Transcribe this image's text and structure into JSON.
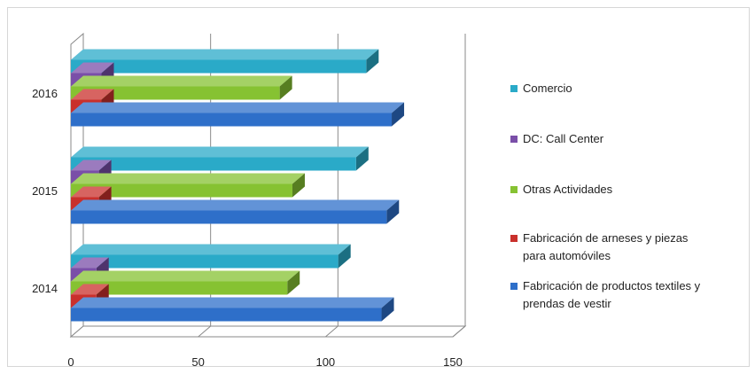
{
  "chart_data": {
    "type": "bar",
    "orientation": "horizontal",
    "style": "3d-clustered",
    "categories": [
      "2014",
      "2015",
      "2016"
    ],
    "xlim": [
      0,
      150
    ],
    "x_ticks": [
      "0",
      "50",
      "100",
      "150"
    ],
    "grid": true,
    "legend_position": "right",
    "series": [
      {
        "name": "Fabricación de productos textiles y prendas de vestir",
        "color": "#2e6fc9",
        "values": [
          122,
          124,
          126
        ]
      },
      {
        "name": "Fabricación de arneses y piezas para automóviles",
        "color": "#c9302c",
        "values": [
          10,
          11,
          12
        ]
      },
      {
        "name": "Otras Actividades",
        "color": "#86c232",
        "values": [
          85,
          87,
          82
        ]
      },
      {
        "name": "DC: Call Center",
        "color": "#7a4fa8",
        "values": [
          10,
          11,
          12
        ]
      },
      {
        "name": "Comercio",
        "color": "#2aaac8",
        "values": [
          105,
          112,
          116
        ]
      }
    ],
    "legend_order": [
      4,
      3,
      2,
      1,
      0
    ],
    "legend_lines": [
      [
        "Comercio"
      ],
      [
        "DC: Call Center"
      ],
      [
        "Otras Actividades"
      ],
      [
        "Fabricación de arneses y piezas",
        "para automóviles"
      ],
      [
        "Fabricación de productos textiles y",
        "prendas de vestir"
      ]
    ]
  }
}
